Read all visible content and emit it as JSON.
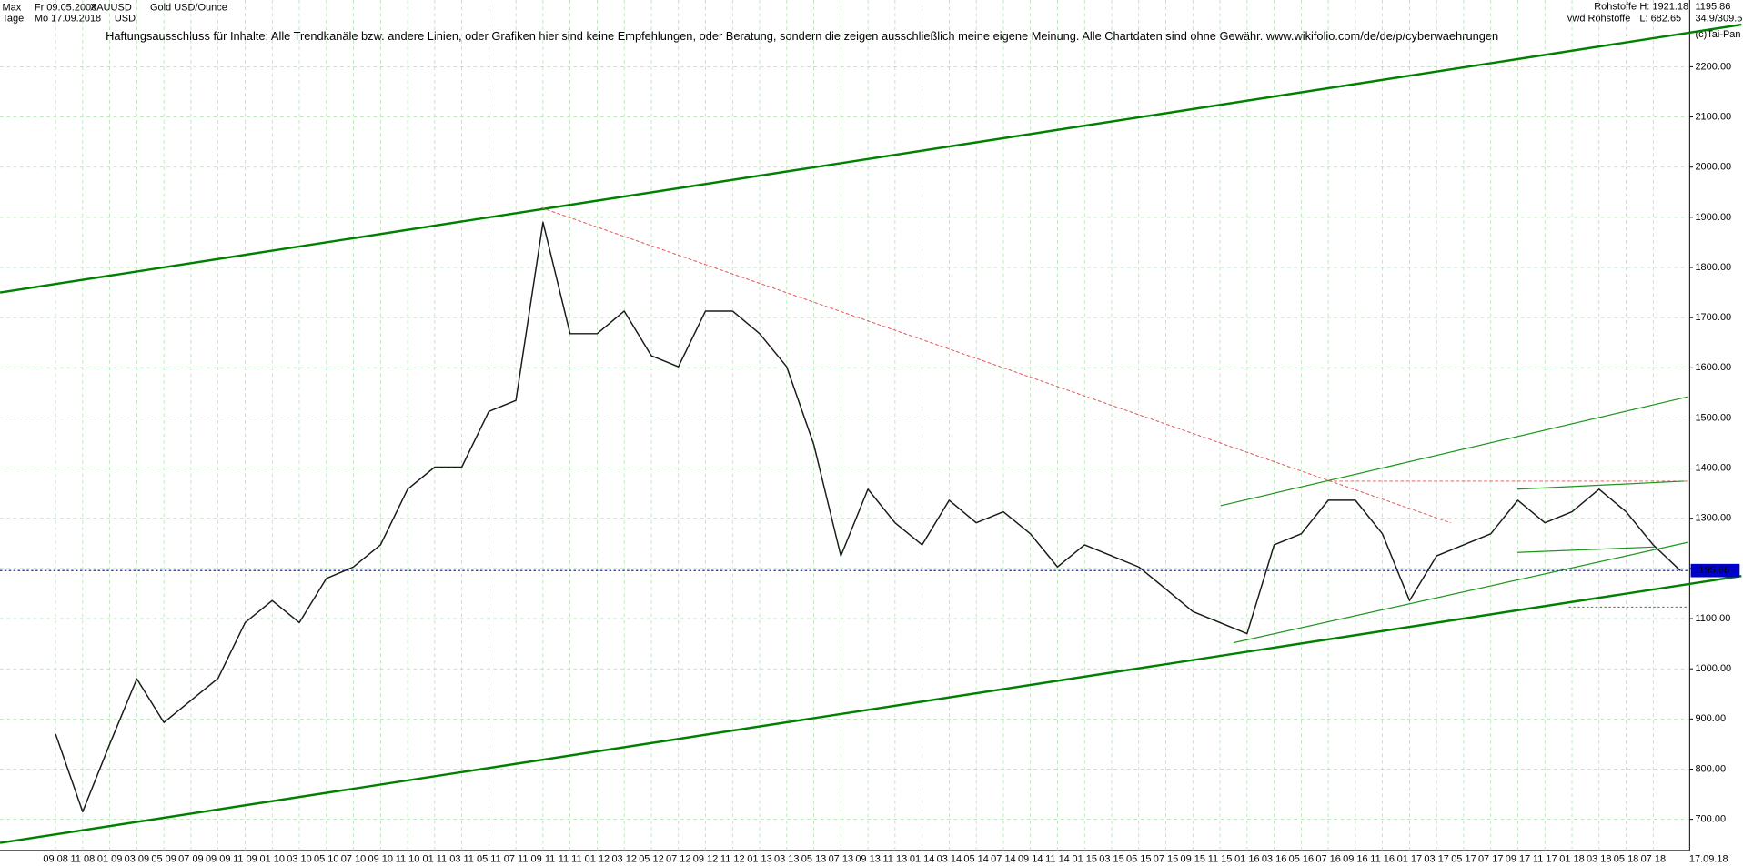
{
  "chart_data": {
    "type": "line",
    "title": "Gold USD/Ounce",
    "info": {
      "range": "Max",
      "from": "Fr 09.05.2008",
      "symbol": "XAUUSD",
      "period": "Tage",
      "to": "Mo 17.09.2018",
      "currency": "USD",
      "disclaimer": "Haftungsausschluss für Inhalte: Alle Trendkanäle bzw. andere Linien, oder Grafiken hier sind keine Empfehlungen, oder Beratung, sondern die zeigen ausschließlich meine eigene Meinung. Alle Chartdaten sind ohne Gewähr.  www.wikifolio.com/de/de/p/cyberwaehrungen",
      "group": "Rohstoffe",
      "high": "H: 1921.18",
      "source": "vwd Rohstoffe",
      "low": "L: 682.65",
      "ratio": "34.9/309.5",
      "copyright": "(c)Tai-Pan"
    },
    "categories": [
      "09 08",
      "11 08",
      "01 09",
      "03 09",
      "05 09",
      "07 09",
      "09 09",
      "11 09",
      "01 10",
      "03 10",
      "05 10",
      "07 10",
      "09 10",
      "11 10",
      "01 11",
      "03 11",
      "05 11",
      "07 11",
      "09 11",
      "11 11",
      "01 12",
      "03 12",
      "05 12",
      "07 12",
      "09 12",
      "11 12",
      "01 13",
      "03 13",
      "05 13",
      "07 13",
      "09 13",
      "11 13",
      "01 14",
      "03 14",
      "05 14",
      "07 14",
      "09 14",
      "11 14",
      "01 15",
      "03 15",
      "05 15",
      "07 15",
      "09 15",
      "11 15",
      "01 16",
      "03 16",
      "05 16",
      "07 16",
      "09 16",
      "11 16",
      "01 17",
      "03 17",
      "05 17",
      "07 17",
      "09 17",
      "11 17",
      "01 18",
      "03 18",
      "05 18",
      "07 18",
      "17.09.18"
    ],
    "series": [
      {
        "name": "Gold USD/Ounce",
        "color": "#1a1a1a",
        "values": [
          870,
          715,
          850,
          980,
          893,
          937,
          981,
          1092,
          1136,
          1092,
          1180,
          1203,
          1247,
          1358,
          1402,
          1402,
          1513,
          1535,
          1890,
          1668,
          1668,
          1713,
          1624,
          1602,
          1713,
          1713,
          1668,
          1602,
          1447,
          1225,
          1358,
          1291,
          1247,
          1336,
          1291,
          1313,
          1269,
          1203,
          1247,
          1225,
          1203,
          1159,
          1114,
          1092,
          1070,
          1247,
          1269,
          1336,
          1336,
          1269,
          1136,
          1225,
          1247,
          1269,
          1336,
          1291,
          1313,
          1358,
          1313,
          1247,
          1195.86
        ]
      }
    ],
    "ylim": [
      638,
      2333
    ],
    "yticks": [
      {
        "value": 700,
        "label": "700.00"
      },
      {
        "value": 800,
        "label": "800.00"
      },
      {
        "value": 900,
        "label": "900.00"
      },
      {
        "value": 1000,
        "label": "1000.00"
      },
      {
        "value": 1100,
        "label": "1100.00"
      },
      {
        "value": 1200,
        "label": "1200.00"
      },
      {
        "value": 1300,
        "label": "1300.00"
      },
      {
        "value": 1400,
        "label": "1400.00"
      },
      {
        "value": 1500,
        "label": "1500.00"
      },
      {
        "value": 1600,
        "label": "1600.00"
      },
      {
        "value": 1700,
        "label": "1700.00"
      },
      {
        "value": 1800,
        "label": "1800.00"
      },
      {
        "value": 1900,
        "label": "1900.00"
      },
      {
        "value": 2000,
        "label": "2000.00"
      },
      {
        "value": 2100,
        "label": "2100.00"
      },
      {
        "value": 2200,
        "label": "2200.00"
      }
    ],
    "grid": true,
    "trend_lines": [
      {
        "x": [
          -2.05,
          62.26
        ],
        "values": [
          1750,
          2284
        ],
        "color": "#008000",
        "width": 2,
        "dash": "none"
      },
      {
        "x": [
          -2.05,
          62.26
        ],
        "values": [
          653,
          1185
        ],
        "color": "#008000",
        "width": 2,
        "dash": "none"
      },
      {
        "x": [
          17.94,
          51.52
        ],
        "values": [
          1919,
          1291
        ],
        "color": "#e05050",
        "width": 0.8,
        "dash": "3 2"
      },
      {
        "x": [
          43.02,
          60.26
        ],
        "values": [
          1325,
          1542
        ],
        "color": "#1e961e",
        "width": 1,
        "dash": "none"
      },
      {
        "x": [
          43.51,
          60.26
        ],
        "values": [
          1052,
          1252
        ],
        "color": "#1e961e",
        "width": 1,
        "dash": "none"
      },
      {
        "x": [
          47,
          60.26
        ],
        "values": [
          1374,
          1374
        ],
        "color": "#e05050",
        "width": 0.8,
        "dash": "3 2"
      },
      {
        "x": [
          53.98,
          60.14
        ],
        "values": [
          1358,
          1374
        ],
        "color": "#1e961e",
        "width": 1,
        "dash": "none"
      },
      {
        "x": [
          53.98,
          59.11
        ],
        "values": [
          1232,
          1243
        ],
        "color": "#1e961e",
        "width": 1,
        "dash": "none"
      },
      {
        "x": [
          55.88,
          60.26
        ],
        "values": [
          1123,
          1123
        ],
        "color": "#1e961e",
        "width": 0.8,
        "dash": "2 2"
      }
    ],
    "last_line_color": "#0000cc"
  }
}
